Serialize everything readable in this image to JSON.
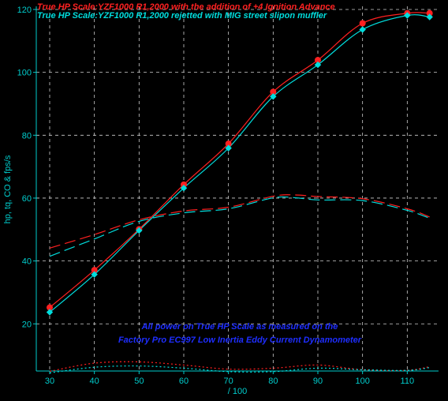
{
  "chart_data": {
    "type": "line",
    "legend": [
      {
        "label": "True HP Scale:YZF1000 R1,2000 with the addition of +4 Ignition Advance",
        "color": "#ff2020"
      },
      {
        "label": "True HP Scale:YZF1000 R1,2000 rejetted with MIG street slipon muffler",
        "color": "#00dddd"
      }
    ],
    "legend_placement": "top-left",
    "annotation": [
      "All power on True HP Scale as measured on the",
      "Factory Pro EC997 Low Inertia Eddy Current Dynamometer"
    ],
    "annotation_color": "#1e2eff",
    "xlabel": "/ 100",
    "ylabel": "hp, tq, CO & fps/s",
    "xlim": [
      27,
      117
    ],
    "ylim": [
      5,
      121
    ],
    "x_ticks": [
      "30",
      "40",
      "50",
      "60",
      "70",
      "80",
      "90",
      "100",
      "110"
    ],
    "y_ticks": [
      "20",
      "40",
      "60",
      "80",
      "100",
      "120"
    ],
    "grid": true,
    "background": "#000000",
    "axis_color": "#00cccc",
    "series": [
      {
        "role": "hp",
        "style": "solid",
        "color": "#ff2020",
        "marker": "circle",
        "x": [
          30,
          40,
          50,
          60,
          70,
          80,
          90,
          100,
          110,
          115
        ],
        "y": [
          25.2,
          37.1,
          50.1,
          64.3,
          77.3,
          93.8,
          103.9,
          115.6,
          118.8,
          118.8
        ]
      },
      {
        "role": "hp",
        "style": "solid",
        "color": "#00dddd",
        "marker": "diamond",
        "x": [
          30,
          40,
          50,
          60,
          70,
          80,
          90,
          100,
          110,
          115
        ],
        "y": [
          23.7,
          35.7,
          49.7,
          63.2,
          75.9,
          92.3,
          102.4,
          113.6,
          118.1,
          117.6
        ]
      },
      {
        "role": "torque",
        "style": "dashed",
        "color": "#ff2020",
        "x": [
          30,
          40,
          50,
          60,
          70,
          80,
          85,
          90,
          100,
          110,
          115
        ],
        "y": [
          44.1,
          48.4,
          53.1,
          55.9,
          57.1,
          60.6,
          61.0,
          60.5,
          59.8,
          56.6,
          54.0
        ],
        "dash": "14,6"
      },
      {
        "role": "torque",
        "style": "dashed",
        "color": "#00dddd",
        "x": [
          30,
          40,
          50,
          60,
          70,
          80,
          85,
          90,
          100,
          110,
          115
        ],
        "y": [
          41.5,
          47.0,
          52.6,
          55.3,
          56.6,
          60.1,
          60.1,
          59.4,
          59.2,
          56.1,
          53.6
        ],
        "dash": "14,6"
      },
      {
        "role": "CO",
        "style": "dotted",
        "color": "#ff2020",
        "x": [
          30,
          40,
          50,
          60,
          70,
          80,
          90,
          100,
          110,
          115
        ],
        "y": [
          4.9,
          7.5,
          7.9,
          6.9,
          5.6,
          5.9,
          6.9,
          5.4,
          5.2,
          6.4
        ],
        "dash": "2,3"
      },
      {
        "role": "CO",
        "style": "dotted",
        "color": "#00dddd",
        "x": [
          30,
          40,
          50,
          60,
          70,
          80,
          90,
          100,
          110,
          115
        ],
        "y": [
          4.4,
          6.2,
          6.6,
          5.9,
          4.8,
          4.8,
          5.9,
          5.4,
          5.2,
          6.1
        ],
        "dash": "2,3"
      }
    ]
  }
}
